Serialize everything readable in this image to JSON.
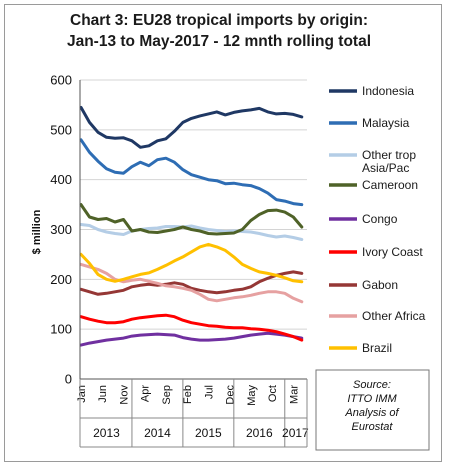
{
  "chart_data": {
    "type": "line",
    "title_line1": "Chart 3: EU28 tropical imports by origin:",
    "title_line2": "Jan-13 to May-2017 - 12 mnth rolling total",
    "ylabel": "$ million",
    "ylim": [
      0,
      600
    ],
    "yticks": [
      "0",
      "100",
      "200",
      "300",
      "400",
      "500",
      "600"
    ],
    "x_ticks": [
      {
        "label": "Jan",
        "m": 0
      },
      {
        "label": "Jun",
        "m": 5
      },
      {
        "label": "Nov",
        "m": 10
      },
      {
        "label": "Apr",
        "m": 15
      },
      {
        "label": "Sep",
        "m": 20
      },
      {
        "label": "Feb",
        "m": 25
      },
      {
        "label": "Jul",
        "m": 30
      },
      {
        "label": "Dec",
        "m": 35
      },
      {
        "label": "May",
        "m": 40
      },
      {
        "label": "Oct",
        "m": 45
      },
      {
        "label": "Mar",
        "m": 50
      }
    ],
    "years": [
      {
        "label": "2013",
        "start": 0,
        "end": 12
      },
      {
        "label": "2014",
        "start": 12,
        "end": 24
      },
      {
        "label": "2015",
        "start": 24,
        "end": 36
      },
      {
        "label": "2016",
        "start": 36,
        "end": 48
      },
      {
        "label": "2017",
        "start": 48,
        "end": 53
      }
    ],
    "months": 53,
    "series": [
      {
        "name": "Indonesia",
        "color": "#1f3864",
        "label_lines": [
          "Indonesia"
        ],
        "points": [
          [
            0,
            545
          ],
          [
            2,
            515
          ],
          [
            4,
            495
          ],
          [
            6,
            485
          ],
          [
            8,
            483
          ],
          [
            10,
            484
          ],
          [
            12,
            478
          ],
          [
            14,
            465
          ],
          [
            16,
            468
          ],
          [
            18,
            478
          ],
          [
            20,
            482
          ],
          [
            22,
            497
          ],
          [
            24,
            515
          ],
          [
            26,
            523
          ],
          [
            28,
            528
          ],
          [
            30,
            532
          ],
          [
            32,
            536
          ],
          [
            34,
            530
          ],
          [
            36,
            535
          ],
          [
            38,
            538
          ],
          [
            40,
            540
          ],
          [
            42,
            543
          ],
          [
            44,
            536
          ],
          [
            46,
            532
          ],
          [
            48,
            533
          ],
          [
            50,
            531
          ],
          [
            52,
            526
          ]
        ]
      },
      {
        "name": "Malaysia",
        "color": "#2e6db4",
        "label_lines": [
          "Malaysia"
        ],
        "points": [
          [
            0,
            480
          ],
          [
            2,
            455
          ],
          [
            4,
            437
          ],
          [
            6,
            422
          ],
          [
            8,
            415
          ],
          [
            10,
            413
          ],
          [
            12,
            426
          ],
          [
            14,
            435
          ],
          [
            16,
            428
          ],
          [
            18,
            440
          ],
          [
            20,
            443
          ],
          [
            22,
            435
          ],
          [
            24,
            420
          ],
          [
            26,
            410
          ],
          [
            28,
            405
          ],
          [
            30,
            400
          ],
          [
            32,
            398
          ],
          [
            34,
            392
          ],
          [
            36,
            393
          ],
          [
            38,
            390
          ],
          [
            40,
            388
          ],
          [
            42,
            382
          ],
          [
            44,
            373
          ],
          [
            46,
            360
          ],
          [
            48,
            357
          ],
          [
            50,
            352
          ],
          [
            52,
            350
          ]
        ]
      },
      {
        "name": "Other trop Asia/Pac",
        "color": "#b4cde6",
        "label_lines": [
          "Other trop",
          "Asia/Pac"
        ],
        "points": [
          [
            0,
            310
          ],
          [
            2,
            308
          ],
          [
            4,
            300
          ],
          [
            6,
            295
          ],
          [
            8,
            292
          ],
          [
            10,
            290
          ],
          [
            12,
            297
          ],
          [
            14,
            300
          ],
          [
            16,
            302
          ],
          [
            18,
            303
          ],
          [
            20,
            306
          ],
          [
            22,
            306
          ],
          [
            24,
            305
          ],
          [
            26,
            307
          ],
          [
            28,
            303
          ],
          [
            30,
            300
          ],
          [
            32,
            298
          ],
          [
            34,
            296
          ],
          [
            36,
            297
          ],
          [
            38,
            296
          ],
          [
            40,
            295
          ],
          [
            42,
            292
          ],
          [
            44,
            288
          ],
          [
            46,
            285
          ],
          [
            48,
            287
          ],
          [
            50,
            284
          ],
          [
            52,
            280
          ]
        ]
      },
      {
        "name": "Cameroon",
        "color": "#4f6228",
        "label_lines": [
          "Cameroon"
        ],
        "points": [
          [
            0,
            350
          ],
          [
            2,
            325
          ],
          [
            4,
            320
          ],
          [
            6,
            322
          ],
          [
            8,
            315
          ],
          [
            10,
            320
          ],
          [
            12,
            297
          ],
          [
            14,
            300
          ],
          [
            16,
            295
          ],
          [
            18,
            294
          ],
          [
            20,
            297
          ],
          [
            22,
            300
          ],
          [
            24,
            305
          ],
          [
            26,
            300
          ],
          [
            28,
            297
          ],
          [
            30,
            292
          ],
          [
            32,
            291
          ],
          [
            34,
            292
          ],
          [
            36,
            293
          ],
          [
            38,
            300
          ],
          [
            40,
            318
          ],
          [
            42,
            330
          ],
          [
            44,
            338
          ],
          [
            46,
            339
          ],
          [
            48,
            335
          ],
          [
            50,
            325
          ],
          [
            52,
            305
          ]
        ]
      },
      {
        "name": "Congo",
        "color": "#7030a0",
        "label_lines": [
          "Congo"
        ],
        "points": [
          [
            0,
            68
          ],
          [
            2,
            72
          ],
          [
            4,
            75
          ],
          [
            6,
            78
          ],
          [
            8,
            80
          ],
          [
            10,
            82
          ],
          [
            12,
            86
          ],
          [
            14,
            88
          ],
          [
            16,
            89
          ],
          [
            18,
            90
          ],
          [
            20,
            89
          ],
          [
            22,
            88
          ],
          [
            24,
            83
          ],
          [
            26,
            80
          ],
          [
            28,
            78
          ],
          [
            30,
            78
          ],
          [
            32,
            79
          ],
          [
            34,
            80
          ],
          [
            36,
            82
          ],
          [
            38,
            85
          ],
          [
            40,
            88
          ],
          [
            42,
            90
          ],
          [
            44,
            92
          ],
          [
            46,
            90
          ],
          [
            48,
            88
          ],
          [
            50,
            85
          ],
          [
            52,
            82
          ]
        ]
      },
      {
        "name": "Ivory Coast",
        "color": "#ff0000",
        "label_lines": [
          "Ivory Coast"
        ],
        "points": [
          [
            0,
            125
          ],
          [
            2,
            120
          ],
          [
            4,
            116
          ],
          [
            6,
            113
          ],
          [
            8,
            113
          ],
          [
            10,
            115
          ],
          [
            12,
            120
          ],
          [
            14,
            123
          ],
          [
            16,
            125
          ],
          [
            18,
            127
          ],
          [
            20,
            128
          ],
          [
            22,
            125
          ],
          [
            24,
            118
          ],
          [
            26,
            113
          ],
          [
            28,
            110
          ],
          [
            30,
            107
          ],
          [
            32,
            106
          ],
          [
            34,
            104
          ],
          [
            36,
            103
          ],
          [
            38,
            103
          ],
          [
            40,
            101
          ],
          [
            42,
            100
          ],
          [
            44,
            98
          ],
          [
            46,
            95
          ],
          [
            48,
            90
          ],
          [
            50,
            85
          ],
          [
            52,
            78
          ]
        ]
      },
      {
        "name": "Gabon",
        "color": "#953735",
        "label_lines": [
          "Gabon"
        ],
        "points": [
          [
            0,
            180
          ],
          [
            2,
            175
          ],
          [
            4,
            170
          ],
          [
            6,
            172
          ],
          [
            8,
            175
          ],
          [
            10,
            178
          ],
          [
            12,
            185
          ],
          [
            14,
            188
          ],
          [
            16,
            190
          ],
          [
            18,
            188
          ],
          [
            20,
            190
          ],
          [
            22,
            193
          ],
          [
            24,
            190
          ],
          [
            26,
            182
          ],
          [
            28,
            178
          ],
          [
            30,
            175
          ],
          [
            32,
            173
          ],
          [
            34,
            175
          ],
          [
            36,
            178
          ],
          [
            38,
            180
          ],
          [
            40,
            185
          ],
          [
            42,
            195
          ],
          [
            44,
            202
          ],
          [
            46,
            208
          ],
          [
            48,
            212
          ],
          [
            50,
            215
          ],
          [
            52,
            212
          ]
        ]
      },
      {
        "name": "Other Africa",
        "color": "#e6a1a1",
        "label_lines": [
          "Other Africa"
        ],
        "points": [
          [
            0,
            230
          ],
          [
            2,
            225
          ],
          [
            4,
            220
          ],
          [
            6,
            212
          ],
          [
            8,
            200
          ],
          [
            10,
            195
          ],
          [
            12,
            198
          ],
          [
            14,
            200
          ],
          [
            16,
            196
          ],
          [
            18,
            192
          ],
          [
            20,
            187
          ],
          [
            22,
            185
          ],
          [
            24,
            182
          ],
          [
            26,
            178
          ],
          [
            28,
            170
          ],
          [
            30,
            160
          ],
          [
            32,
            157
          ],
          [
            34,
            160
          ],
          [
            36,
            163
          ],
          [
            38,
            165
          ],
          [
            40,
            168
          ],
          [
            42,
            172
          ],
          [
            44,
            175
          ],
          [
            46,
            175
          ],
          [
            48,
            172
          ],
          [
            50,
            162
          ],
          [
            52,
            155
          ]
        ]
      },
      {
        "name": "Brazil",
        "color": "#ffc000",
        "label_lines": [
          "Brazil"
        ],
        "points": [
          [
            0,
            250
          ],
          [
            2,
            232
          ],
          [
            4,
            210
          ],
          [
            6,
            200
          ],
          [
            8,
            196
          ],
          [
            10,
            200
          ],
          [
            12,
            205
          ],
          [
            14,
            210
          ],
          [
            16,
            213
          ],
          [
            18,
            220
          ],
          [
            20,
            228
          ],
          [
            22,
            237
          ],
          [
            24,
            245
          ],
          [
            26,
            255
          ],
          [
            28,
            265
          ],
          [
            30,
            270
          ],
          [
            32,
            265
          ],
          [
            34,
            258
          ],
          [
            36,
            245
          ],
          [
            38,
            230
          ],
          [
            40,
            222
          ],
          [
            42,
            215
          ],
          [
            44,
            212
          ],
          [
            46,
            208
          ],
          [
            48,
            203
          ],
          [
            50,
            197
          ],
          [
            52,
            195
          ]
        ]
      }
    ],
    "annotation_lines": [
      "Source:",
      "ITTO IMM",
      "Analysis of",
      "Eurostat"
    ]
  }
}
